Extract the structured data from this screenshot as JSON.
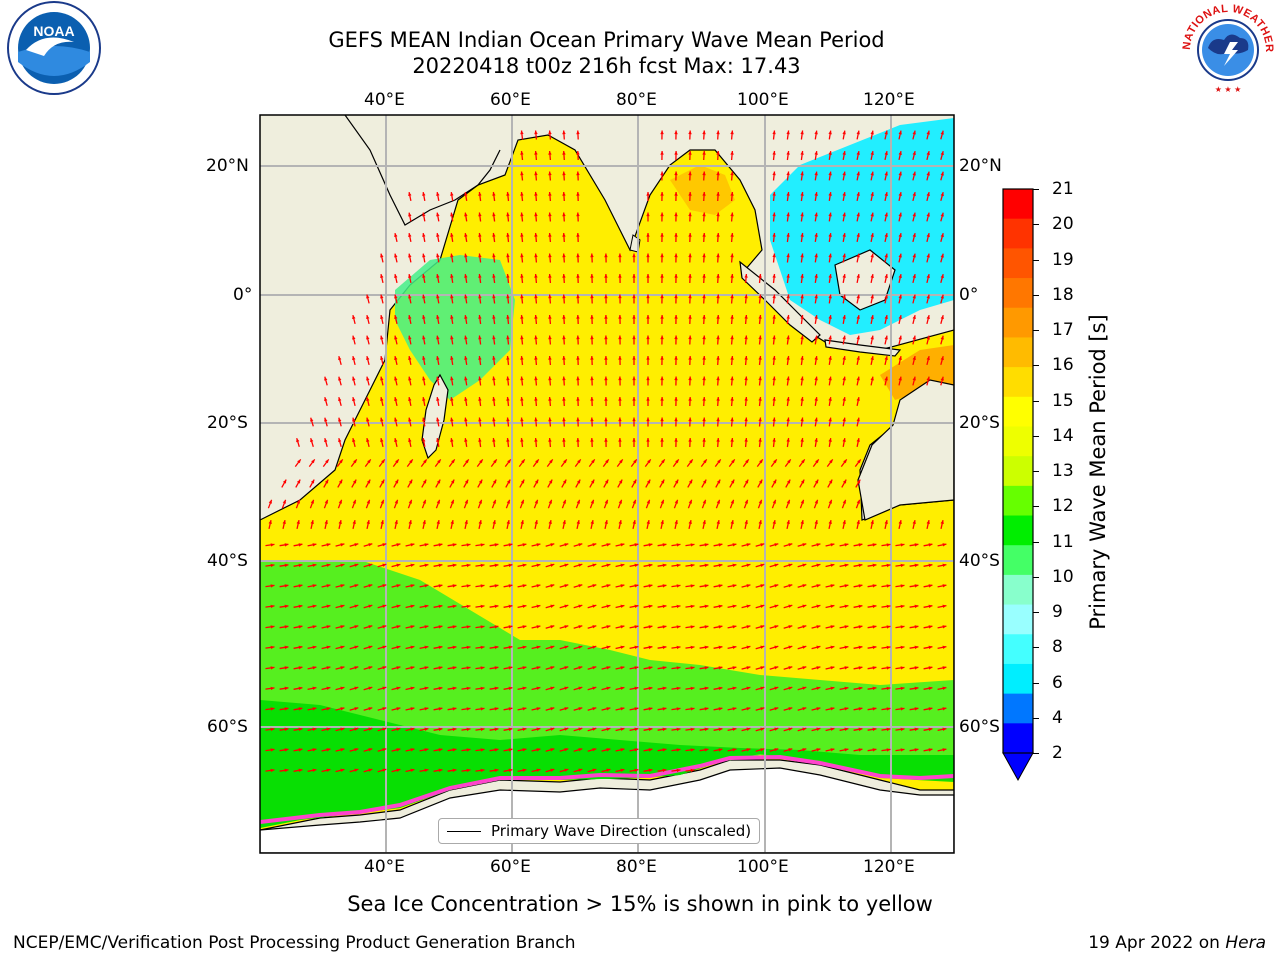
{
  "header": {
    "title_line1": "GEFS MEAN Indian Ocean Primary Wave Mean Period",
    "title_line2": "20220418 t00z 216h fcst   Max: 17.43"
  },
  "logos": {
    "left": "NOAA",
    "right": "NATIONAL WEATHER SERVICE"
  },
  "map": {
    "lon_ticks": [
      "40°E",
      "60°E",
      "80°E",
      "100°E",
      "120°E"
    ],
    "lat_ticks": [
      "20°N",
      "0°",
      "20°S",
      "40°S",
      "60°S"
    ],
    "legend_label": "Primary Wave Direction (unscaled)",
    "ocean_color": "#ffee00",
    "land_color": "#efeedd",
    "arrow_color": "#ff0000"
  },
  "colorbar": {
    "label": "Primary Wave Mean Period [s]",
    "ticks": [
      "21",
      "20",
      "19",
      "18",
      "17",
      "16",
      "15",
      "14",
      "13",
      "12",
      "11",
      "10",
      "9",
      "8",
      "6",
      "4",
      "2"
    ],
    "colors": [
      "#ff0000",
      "#ff3300",
      "#ff5500",
      "#ff7700",
      "#ff9900",
      "#ffbb00",
      "#ffdd00",
      "#ffff00",
      "#eeff00",
      "#ccff00",
      "#66ff00",
      "#00ee00",
      "#44ff66",
      "#88ffcc",
      "#99ffff",
      "#44ffff",
      "#00eeff",
      "#0077ff",
      "#0000ff"
    ]
  },
  "footer": {
    "sea_ice_note": "Sea Ice Concentration > 15% is shown in pink to yellow",
    "credit": "NCEP/EMC/Verification Post Processing Product Generation Branch",
    "date_prefix": "19 Apr 2022 on ",
    "machine": "Hera"
  }
}
